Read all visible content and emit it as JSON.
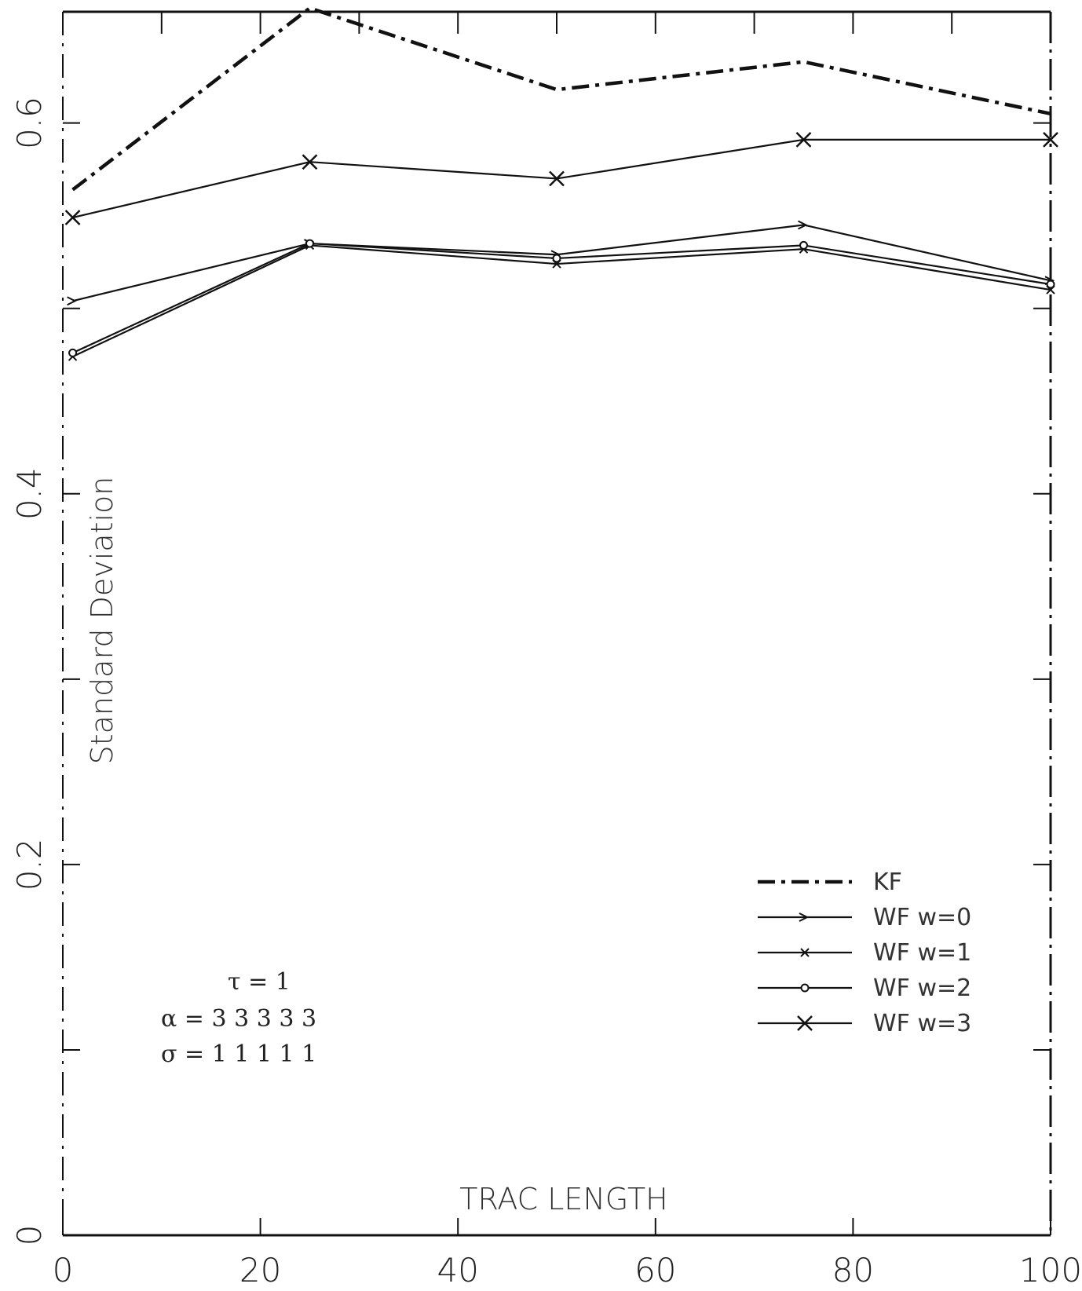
{
  "chart_data": {
    "type": "line",
    "title": "",
    "xlabel": "TRAC LENGTH",
    "ylabel": "Standard Deviation",
    "xlim": [
      0,
      100
    ],
    "ylim": [
      0,
      0.66
    ],
    "x_ticks": [
      0,
      20,
      40,
      60,
      80,
      100
    ],
    "x_tick_labels": [
      "0",
      "20",
      "40",
      "60",
      "80",
      "100"
    ],
    "y_ticks": [
      0,
      0.1,
      0.2,
      0.3,
      0.4,
      0.5,
      0.6
    ],
    "y_tick_labels": [
      "0",
      "",
      "0.2",
      "",
      "0.4",
      "",
      "0.6"
    ],
    "grid": false,
    "legend_position": "bottom-right",
    "x": [
      1,
      25,
      50,
      75,
      100
    ],
    "series": [
      {
        "name": "KF",
        "values": [
          0.564,
          0.662,
          0.618,
          0.633,
          0.605
        ],
        "style": "dashdot",
        "marker": "none"
      },
      {
        "name": "WF  w=0",
        "values": [
          0.504,
          0.535,
          0.529,
          0.545,
          0.515
        ],
        "style": "solid",
        "marker": "arrow"
      },
      {
        "name": "WF  w=1",
        "values": [
          0.474,
          0.534,
          0.524,
          0.532,
          0.51
        ],
        "style": "solid",
        "marker": "small-x"
      },
      {
        "name": "WF  w=2",
        "values": [
          0.476,
          0.535,
          0.527,
          0.534,
          0.513
        ],
        "style": "solid",
        "marker": "circle"
      },
      {
        "name": "WF  w=3",
        "values": [
          0.549,
          0.579,
          0.57,
          0.591,
          0.591
        ],
        "style": "solid",
        "marker": "x"
      }
    ],
    "annotations": [
      "τ = 1",
      "α = 3  3  3  3  3",
      "σ = 1  1  1  1  1"
    ]
  },
  "colors": {
    "line": "#111111",
    "background": "#ffffff"
  }
}
